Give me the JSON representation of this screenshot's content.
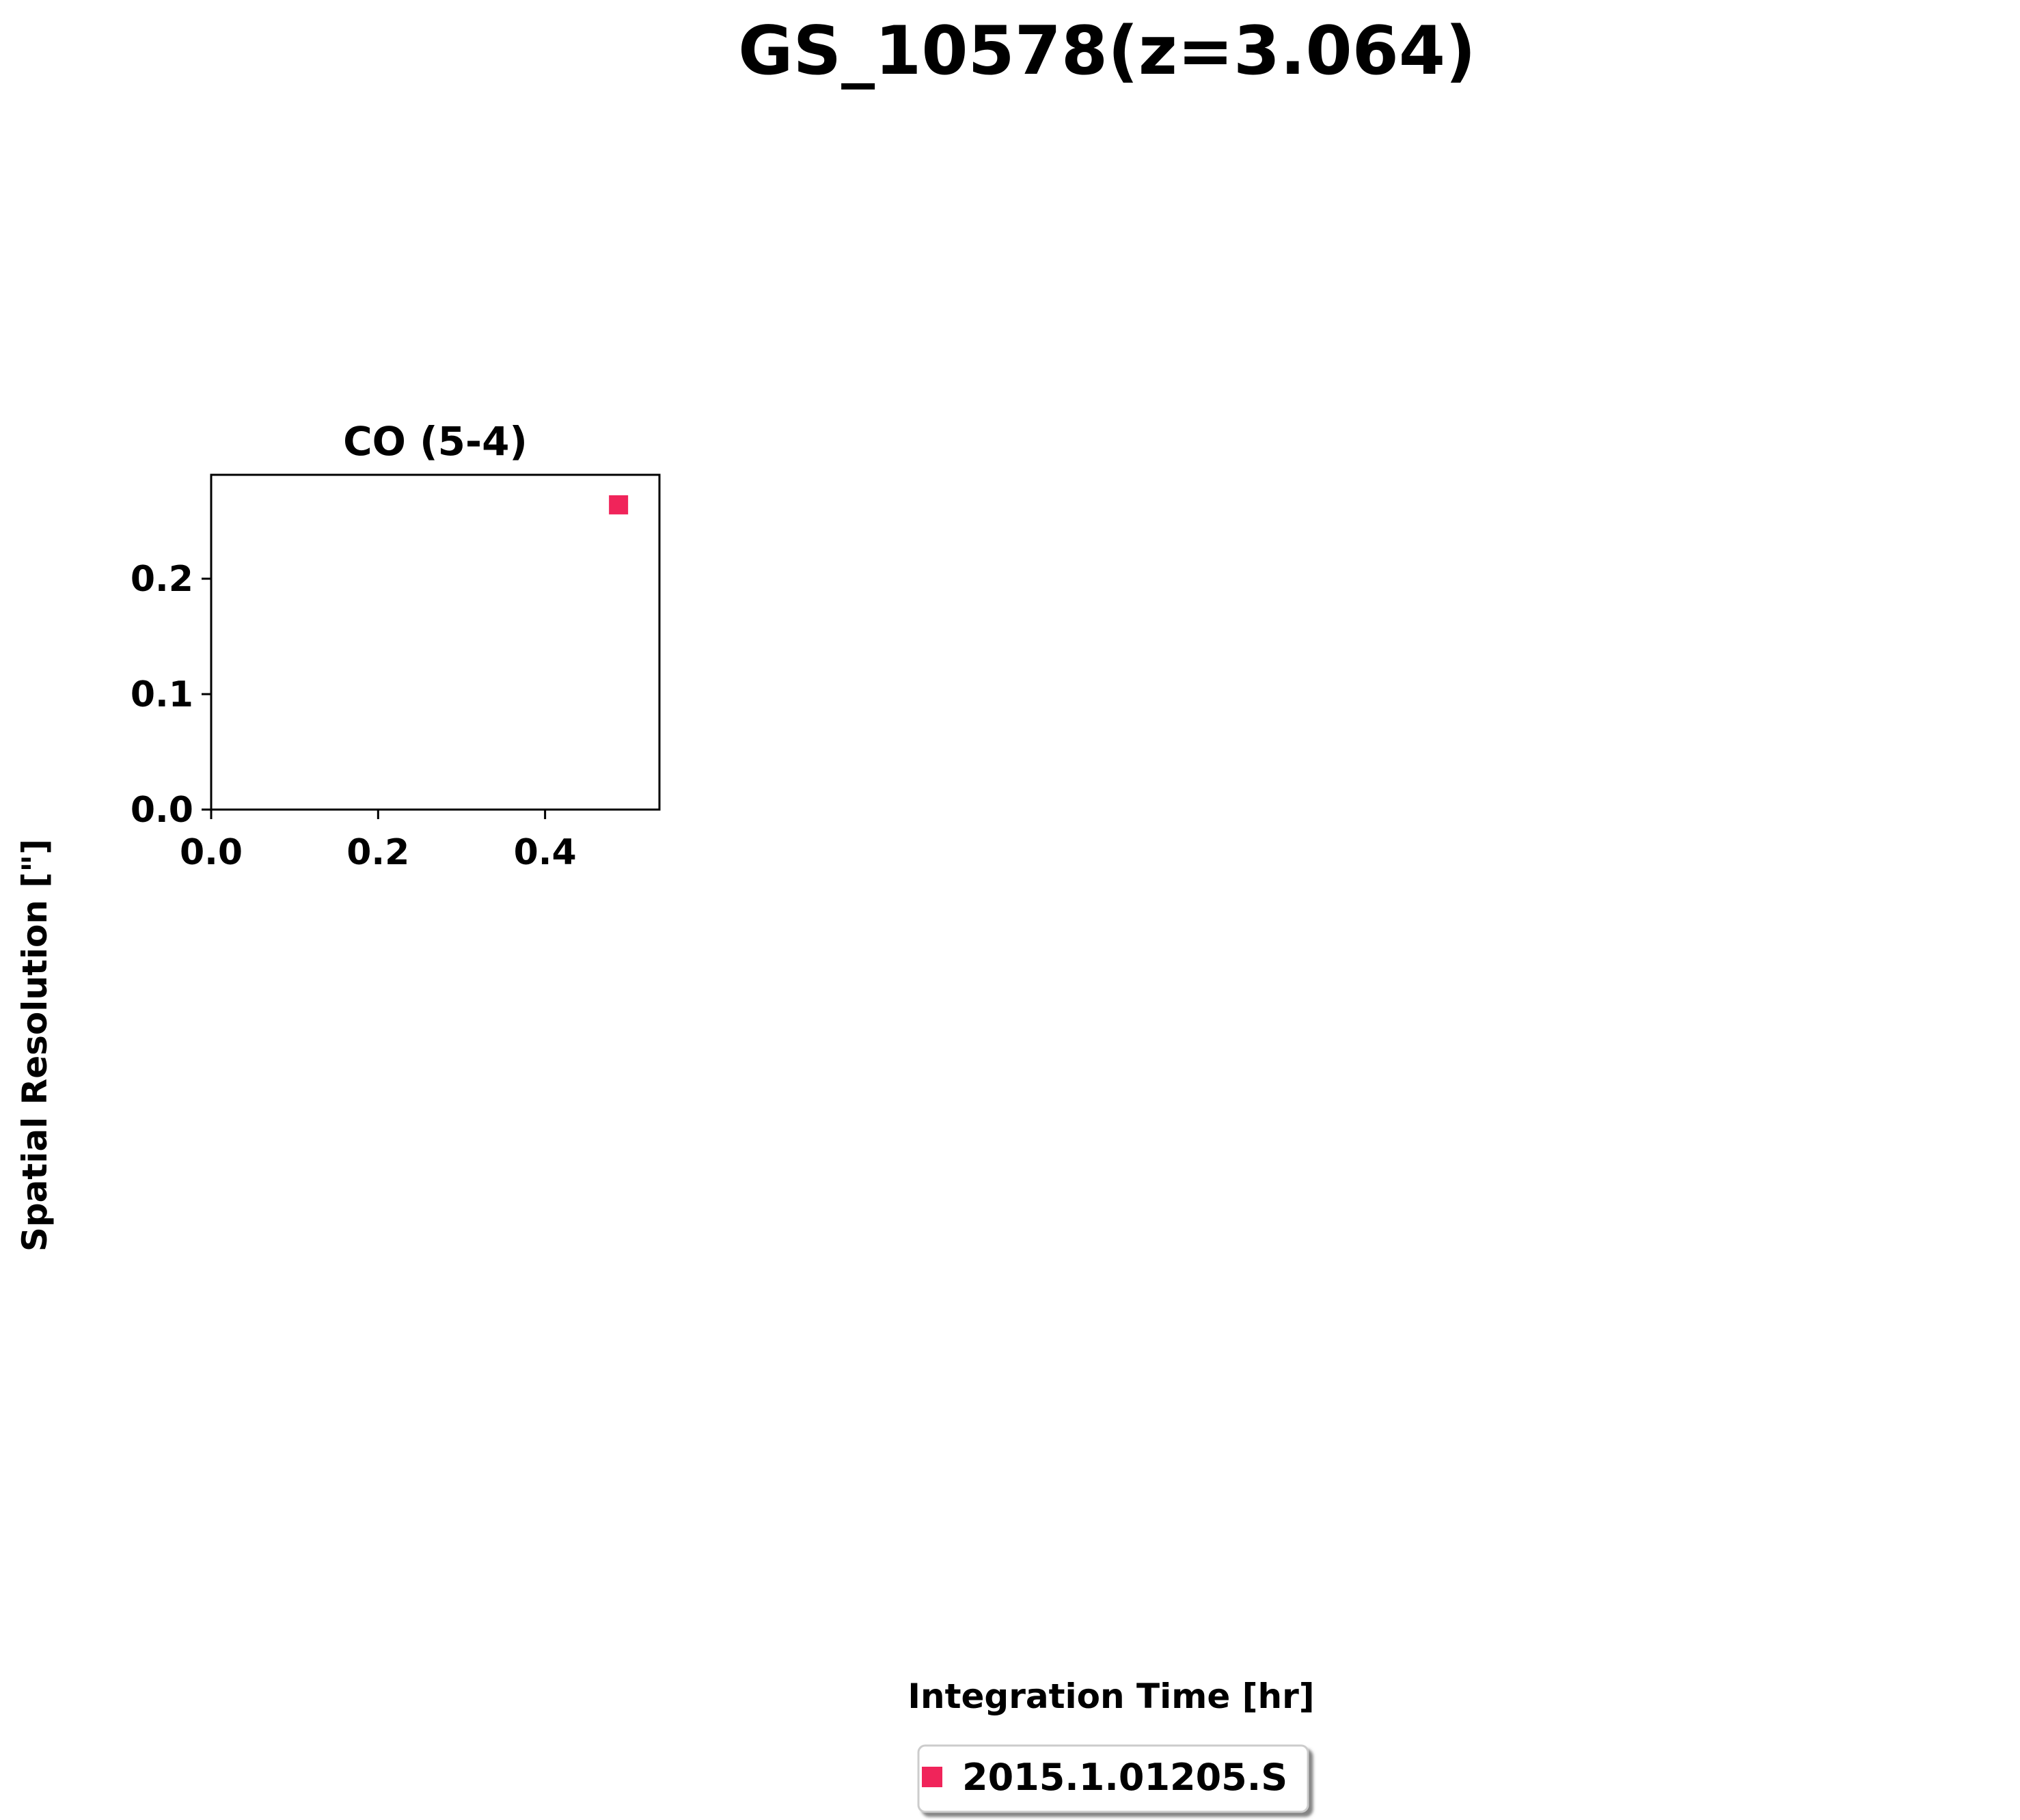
{
  "figure": {
    "title": "GS_10578(z=3.064)",
    "xlabel": "Integration Time [hr]",
    "ylabel": "Spatial Resolution [\"]"
  },
  "chart_data": {
    "type": "scatter",
    "title": "CO (5-4)",
    "xlabel": "Integration Time [hr]",
    "ylabel": "Spatial Resolution [\"]",
    "xlim": [
      0.0,
      0.537
    ],
    "ylim": [
      0.0,
      0.29
    ],
    "xticks": [
      "0.0",
      "0.2",
      "0.4"
    ],
    "xtick_values": [
      0.0,
      0.2,
      0.4
    ],
    "yticks": [
      "0.0",
      "0.1",
      "0.2"
    ],
    "ytick_values": [
      0.0,
      0.1,
      0.2
    ],
    "grid": false,
    "legend_position": "bottom-center",
    "series": [
      {
        "name": "2015.1.01205.S",
        "color": "#f0245a",
        "marker": "square",
        "points": [
          {
            "x": 0.488,
            "y": 0.264
          }
        ]
      }
    ]
  }
}
